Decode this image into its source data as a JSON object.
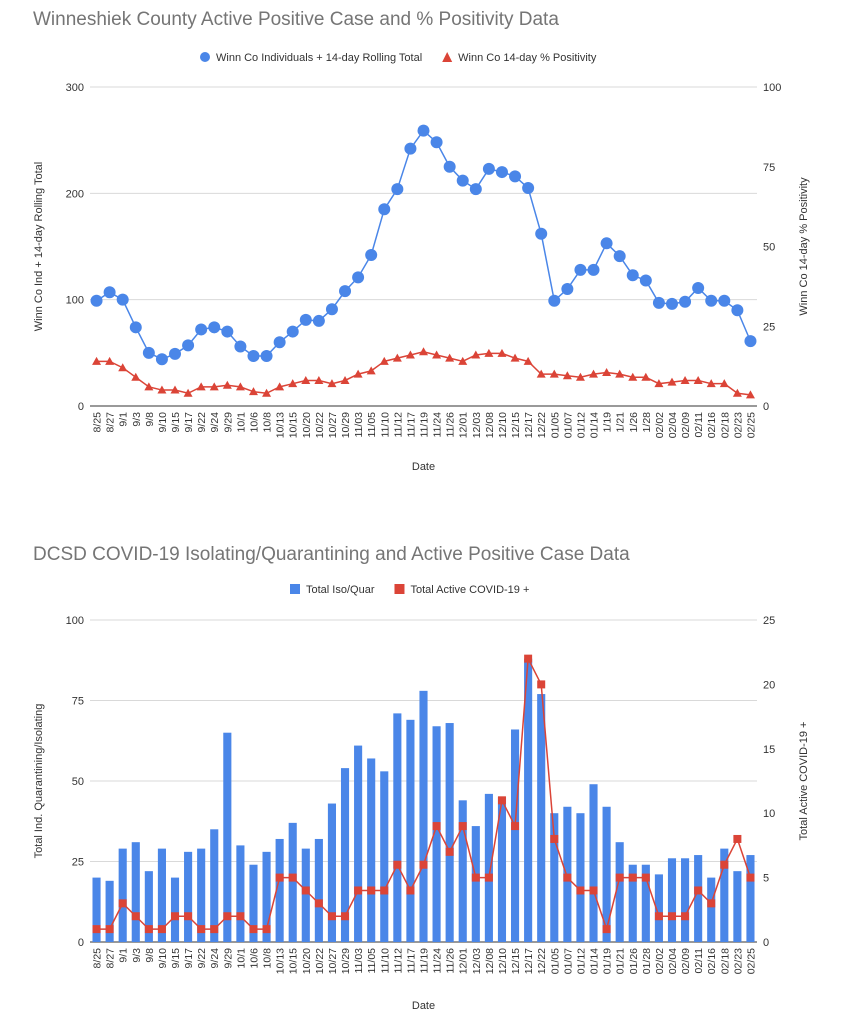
{
  "colors": {
    "blue": "#4a86e8",
    "red": "#db4437",
    "grid": "#d9d9d9",
    "text": "#333333"
  },
  "chart_data": [
    {
      "type": "line",
      "title": "Winneshiek County Active Positive Case and % Positivity Data",
      "xlabel": "Date",
      "ylabel_left": "Winn Co Ind + 14-day Rolling Total",
      "ylabel_right": "Winn Co 14-day % Positivity",
      "ylim_left": [
        0,
        300
      ],
      "yticks_left": [
        "0",
        "100",
        "200",
        "300"
      ],
      "ylim_right": [
        0,
        100
      ],
      "yticks_right": [
        "0",
        "25",
        "50",
        "75",
        "100"
      ],
      "legend_position": "top",
      "categories": [
        "8/25",
        "8/27",
        "9/1",
        "9/3",
        "9/8",
        "9/10",
        "9/15",
        "9/17",
        "9/22",
        "9/24",
        "9/29",
        "10/1",
        "10/6",
        "10/8",
        "10/13",
        "10/15",
        "10/20",
        "10/22",
        "10/27",
        "10/29",
        "11/03",
        "11/05",
        "11/10",
        "11/12",
        "11/17",
        "11/19",
        "11/24",
        "11/26",
        "12/01",
        "12/03",
        "12/08",
        "12/10",
        "12/15",
        "12/17",
        "12/22",
        "01/05",
        "01/07",
        "01/12",
        "01/14",
        "1/19",
        "1/21",
        "1/26",
        "1/28",
        "02/02",
        "02/04",
        "02/09",
        "02/11",
        "02/16",
        "02/18",
        "02/23",
        "02/25"
      ],
      "series": [
        {
          "name": "Winn Co Individuals + 14-day Rolling Total",
          "axis": "left",
          "marker": "circle",
          "color": "#4a86e8",
          "values": [
            99,
            107,
            100,
            74,
            50,
            44,
            49,
            57,
            72,
            74,
            70,
            56,
            47,
            47,
            60,
            70,
            81,
            80,
            91,
            108,
            121,
            142,
            185,
            204,
            242,
            259,
            248,
            225,
            212,
            204,
            223,
            220,
            216,
            205,
            162,
            99,
            110,
            128,
            128,
            153,
            141,
            123,
            118,
            97,
            96,
            98,
            111,
            99,
            99,
            90,
            61
          ]
        },
        {
          "name": "Winn Co 14-day % Positivity",
          "axis": "right",
          "marker": "triangle",
          "color": "#db4437",
          "values": [
            14,
            14,
            12,
            9,
            6,
            5,
            5,
            4,
            6,
            6,
            6.5,
            6,
            4.5,
            4,
            6,
            7,
            8,
            8,
            7,
            8,
            10,
            11,
            14,
            15,
            16,
            17,
            16,
            15,
            14,
            16,
            16.5,
            16.5,
            15,
            14,
            10,
            10,
            9.5,
            9,
            10,
            10.5,
            10,
            9,
            9,
            7,
            7.5,
            8,
            8,
            7,
            7,
            4,
            3.5
          ]
        }
      ]
    },
    {
      "type": "bar",
      "title": "DCSD COVID-19 Isolating/Quarantining and Active Positive Case Data",
      "xlabel": "Date",
      "ylabel_left": "Total Ind. Quarantining/Isolating",
      "ylabel_right": "Total Active COVID-19 +",
      "ylim_left": [
        0,
        100
      ],
      "yticks_left": [
        "0",
        "25",
        "50",
        "75",
        "100"
      ],
      "ylim_right": [
        0,
        25
      ],
      "yticks_right": [
        "0",
        "5",
        "10",
        "15",
        "20",
        "25"
      ],
      "legend_position": "top",
      "categories": [
        "8/25",
        "8/27",
        "9/1",
        "9/3",
        "9/8",
        "9/10",
        "9/15",
        "9/17",
        "9/22",
        "9/24",
        "9/29",
        "10/1",
        "10/6",
        "10/8",
        "10/13",
        "10/15",
        "10/20",
        "10/22",
        "10/27",
        "10/29",
        "11/03",
        "11/05",
        "11/10",
        "11/12",
        "11/17",
        "11/19",
        "11/24",
        "11/26",
        "12/01",
        "12/03",
        "12/08",
        "12/10",
        "12/15",
        "12/17",
        "12/22",
        "01/05",
        "01/07",
        "01/12",
        "01/14",
        "01/19",
        "01/21",
        "01/26",
        "01/28",
        "02/02",
        "02/04",
        "02/09",
        "02/11",
        "02/16",
        "02/18",
        "02/23",
        "02/25"
      ],
      "series": [
        {
          "name": "Total Iso/Quar",
          "axis": "left",
          "kind": "bar",
          "marker": "square",
          "color": "#4a86e8",
          "values": [
            20,
            19,
            29,
            31,
            22,
            29,
            20,
            28,
            29,
            35,
            65,
            30,
            24,
            28,
            32,
            37,
            29,
            32,
            43,
            54,
            61,
            57,
            53,
            71,
            69,
            78,
            67,
            68,
            44,
            36,
            46,
            45,
            66,
            88,
            77,
            40,
            42,
            40,
            49,
            42,
            31,
            24,
            24,
            21,
            26,
            26,
            27,
            20,
            29,
            22,
            27
          ]
        },
        {
          "name": "Total Active COVID-19 +",
          "axis": "right",
          "kind": "line",
          "marker": "square",
          "color": "#db4437",
          "values": [
            1,
            1,
            3,
            2,
            1,
            1,
            2,
            2,
            1,
            1,
            2,
            2,
            1,
            1,
            5,
            5,
            4,
            3,
            2,
            2,
            4,
            4,
            4,
            6,
            4,
            6,
            9,
            7,
            9,
            5,
            5,
            11,
            9,
            22,
            20,
            8,
            5,
            4,
            4,
            1,
            5,
            5,
            5,
            2,
            2,
            2,
            4,
            3,
            6,
            8,
            5
          ]
        }
      ]
    }
  ]
}
